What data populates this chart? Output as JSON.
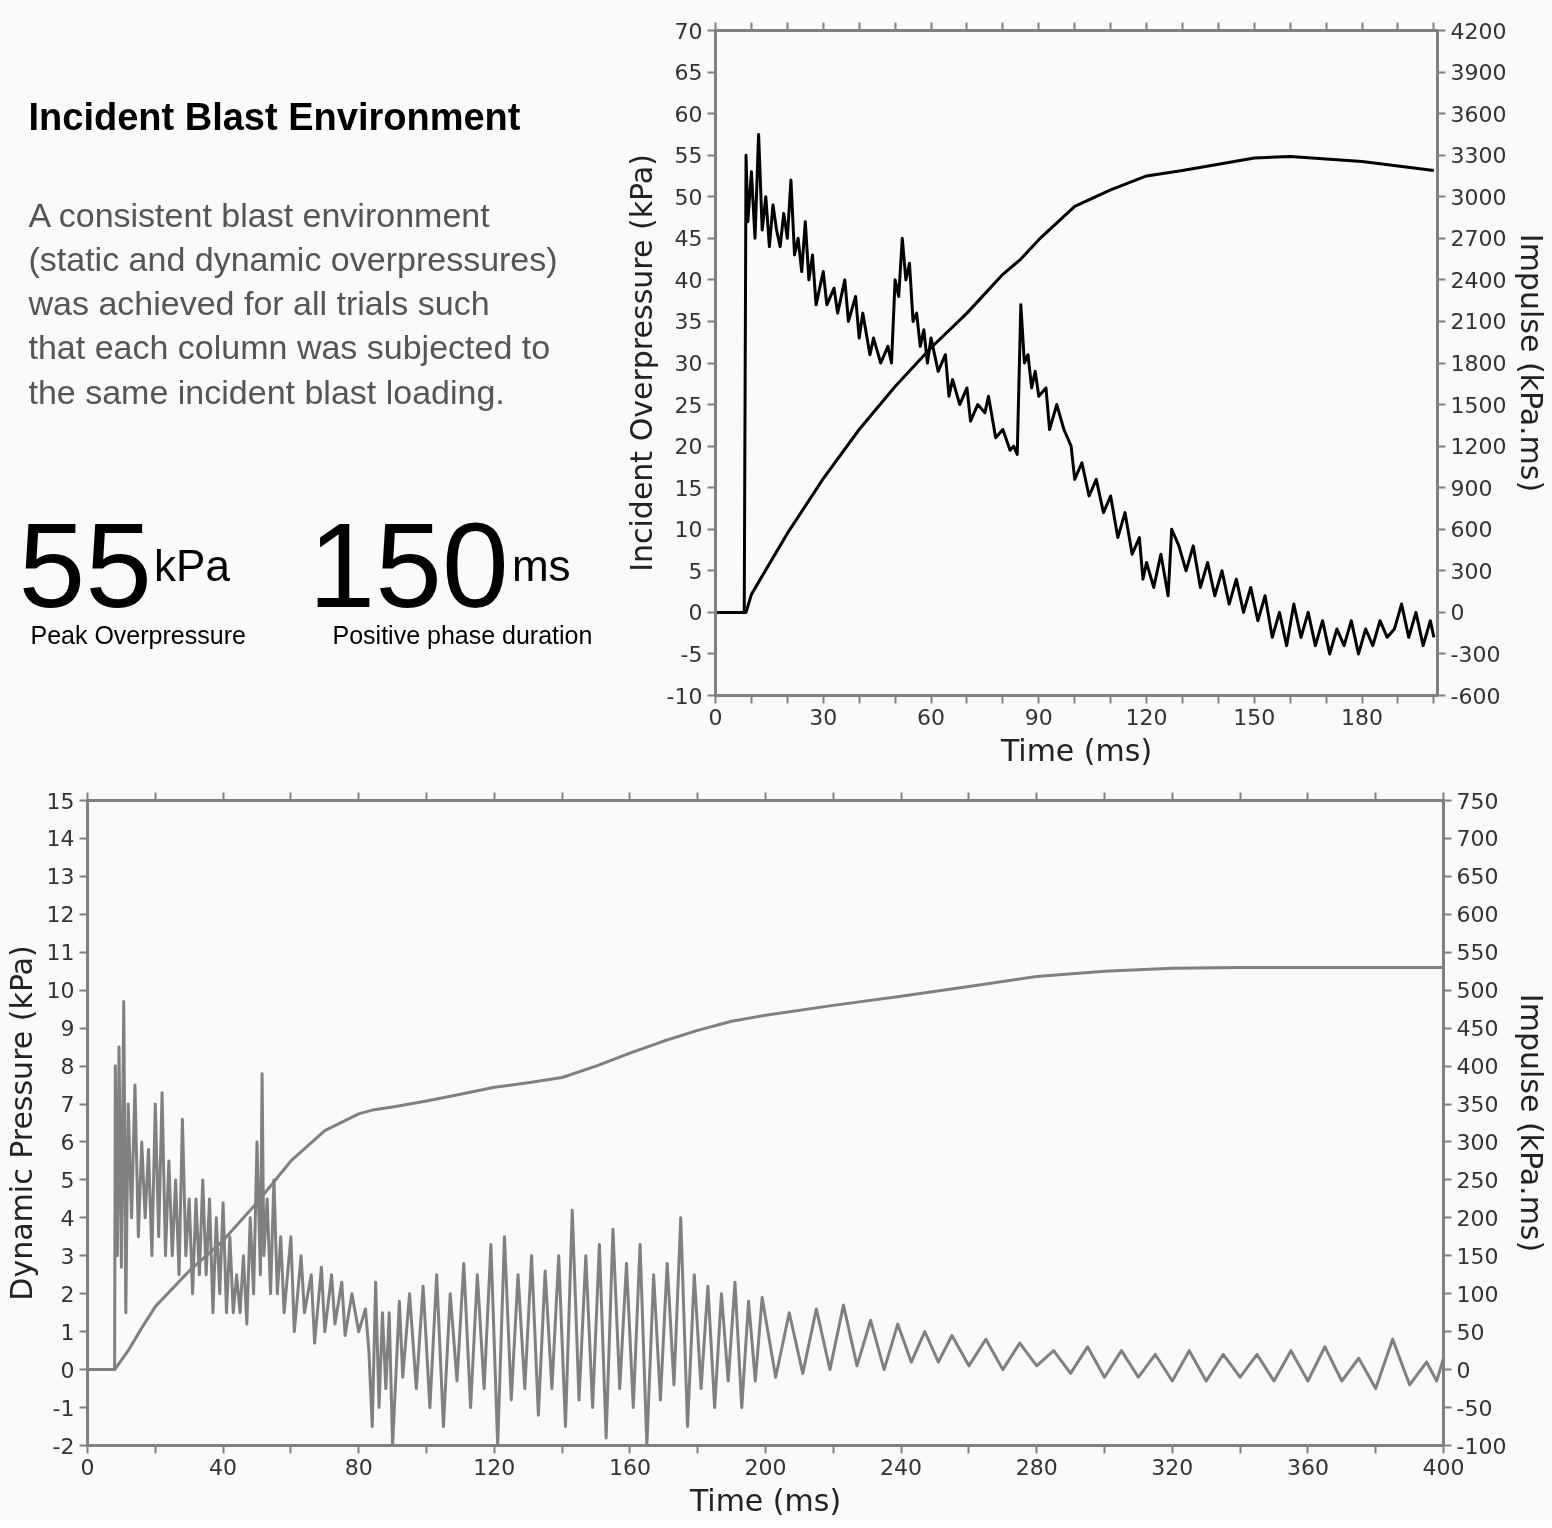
{
  "chart_data": [
    {
      "type": "other",
      "title": "Incident Blast Environment",
      "annotations": [
        "A consistent blast environment (static and dynamic overpressures) was achieved for all trials such that each column was subjected to the same incident blast loading.",
        "55",
        "kPa",
        "Peak Overpressure",
        "150",
        "ms",
        "Positive phase duration"
      ]
    },
    {
      "type": "line",
      "xlabel": "Time (ms)",
      "ylabel": "Incident Overpressure (kPa)",
      "y2label": "Impulse (kPa.ms)",
      "xlim": [
        0,
        201
      ],
      "ylim": [
        -10,
        70
      ],
      "y2lim": [
        -600,
        4200
      ],
      "xticks": [
        0,
        {
          "value": 10,
          "label": null
        },
        {
          "value": 20,
          "label": null
        },
        30,
        {
          "value": 40,
          "label": null
        },
        {
          "value": 50,
          "label": null
        },
        60,
        {
          "value": 70,
          "label": null
        },
        {
          "value": 80,
          "label": null
        },
        90,
        {
          "value": 100,
          "label": null
        },
        {
          "value": 110,
          "label": null
        },
        120,
        {
          "value": 130,
          "label": null
        },
        {
          "value": 140,
          "label": null
        },
        150,
        {
          "value": 160,
          "label": null
        },
        {
          "value": 170,
          "label": null
        },
        180,
        {
          "value": 190,
          "label": null
        },
        {
          "value": 200,
          "label": null
        }
      ],
      "yticks": [
        -10,
        -5,
        0,
        5,
        10,
        15,
        20,
        25,
        30,
        35,
        40,
        45,
        50,
        55,
        60,
        65,
        70
      ],
      "y2ticks": [
        -600,
        -300,
        0,
        300,
        600,
        900,
        1200,
        1500,
        1800,
        2100,
        2400,
        2700,
        3000,
        3300,
        3600,
        3900,
        4200
      ],
      "grid": false,
      "line_style": "solid",
      "marker": "none",
      "series": [
        {
          "color": "#000000",
          "x": [
            0,
            8,
            8.5,
            9,
            10,
            11,
            12,
            13,
            14,
            15,
            16,
            17,
            18,
            19,
            20,
            21,
            22,
            23,
            24,
            25,
            26,
            27,
            28,
            30,
            31,
            33,
            34,
            36,
            37,
            39,
            40,
            41,
            43,
            44,
            46,
            48,
            49,
            50,
            51,
            52,
            53,
            54,
            55,
            56,
            57,
            58,
            59,
            60,
            62,
            64,
            65,
            66,
            68,
            70,
            71,
            73,
            75,
            76,
            78,
            80,
            82,
            83,
            84,
            85,
            86,
            87,
            88,
            89,
            90,
            92,
            93,
            95,
            97,
            99,
            100,
            102,
            104,
            106,
            108,
            110,
            112,
            114,
            116,
            118,
            119,
            120,
            122,
            124,
            126,
            127,
            129,
            131,
            133,
            135,
            137,
            139,
            141,
            143,
            145,
            147,
            149,
            151,
            153,
            155,
            157,
            159,
            161,
            163,
            165,
            167,
            169,
            171,
            173,
            175,
            177,
            179,
            181,
            183,
            185,
            187,
            189,
            191,
            193,
            195,
            197,
            199,
            200
          ],
          "values": [
            0,
            0,
            55,
            47,
            53,
            45,
            57.5,
            46,
            50,
            44,
            49,
            46,
            44,
            48,
            45,
            52,
            43,
            45,
            41,
            47,
            40,
            43,
            37,
            41,
            37,
            39,
            36,
            40,
            35,
            38,
            33,
            36,
            31,
            33,
            30,
            32,
            30,
            40,
            38,
            45,
            40,
            42,
            35,
            36,
            32,
            34,
            30,
            33,
            29,
            31,
            26,
            28,
            25,
            27,
            23,
            25,
            24,
            26,
            21,
            22,
            19.5,
            20,
            19,
            37,
            30,
            31,
            27,
            29,
            26,
            27,
            22,
            25,
            22,
            20,
            16,
            18,
            14,
            16,
            12,
            14,
            9,
            12,
            7,
            9,
            4,
            6,
            3,
            7,
            2,
            10,
            8,
            5,
            8,
            3,
            6,
            2,
            5,
            1,
            4,
            0,
            3,
            -1,
            2,
            -3,
            0,
            -4,
            1,
            -3,
            0,
            -4,
            -1,
            -5,
            -2,
            -4,
            -1,
            -5,
            -2,
            -4,
            -1,
            -3,
            -2,
            1,
            -3,
            0,
            -4,
            -1,
            -3
          ],
          "axis": "y"
        },
        {
          "color": "#000000",
          "x": [
            0,
            8.5,
            10,
            15,
            20,
            30,
            40,
            50,
            60,
            70,
            80,
            85,
            90,
            100,
            110,
            120,
            130,
            150,
            160,
            180,
            200
          ],
          "values": [
            0,
            0,
            130,
            350,
            570,
            965,
            1320,
            1630,
            1910,
            2160,
            2440,
            2550,
            2690,
            2930,
            3050,
            3150,
            3190,
            3280,
            3290,
            3255,
            3190
          ],
          "axis": "y2"
        }
      ]
    },
    {
      "type": "line",
      "xlabel": "Time (ms)",
      "ylabel": "Dynamic Pressure (kPa)",
      "y2label": "Impulse (kPa.ms)",
      "xlim": [
        0,
        400
      ],
      "ylim": [
        -2,
        15
      ],
      "y2lim": [
        -100,
        750
      ],
      "xticks": [
        0,
        {
          "value": 20,
          "label": null
        },
        40,
        {
          "value": 60,
          "label": null
        },
        80,
        {
          "value": 100,
          "label": null
        },
        120,
        {
          "value": 140,
          "label": null
        },
        160,
        {
          "value": 180,
          "label": null
        },
        200,
        {
          "value": 220,
          "label": null
        },
        240,
        {
          "value": 260,
          "label": null
        },
        280,
        {
          "value": 300,
          "label": null
        },
        320,
        {
          "value": 340,
          "label": null
        },
        360,
        {
          "value": 380,
          "label": null
        },
        400
      ],
      "yticks": [
        -2,
        -1,
        0,
        1,
        2,
        3,
        4,
        5,
        6,
        7,
        8,
        9,
        10,
        11,
        12,
        13,
        14,
        15
      ],
      "y2ticks": [
        -100,
        -50,
        0,
        50,
        100,
        150,
        200,
        250,
        300,
        350,
        400,
        450,
        500,
        550,
        600,
        650,
        700,
        750
      ],
      "grid": false,
      "line_style": "solid",
      "marker": "none",
      "series": [
        {
          "color": "#808080",
          "x": [
            0,
            8,
            8.2,
            8.8,
            9.3,
            10,
            10.7,
            11.3,
            12,
            13,
            14,
            15,
            16,
            17,
            18,
            19,
            20,
            21,
            22,
            23,
            24,
            25,
            26,
            27,
            28,
            29,
            30,
            31,
            32,
            33,
            34,
            35,
            36,
            37,
            38,
            39,
            40,
            41,
            42,
            43,
            44,
            45,
            46,
            47,
            48,
            49,
            50,
            51,
            51.5,
            52,
            53,
            54,
            55,
            56,
            57,
            58,
            60,
            61,
            63,
            64,
            66,
            67,
            69,
            70,
            72,
            73,
            75,
            76,
            78,
            80,
            82,
            83,
            84,
            85,
            86,
            87,
            88,
            89,
            90,
            92,
            93,
            95,
            97,
            99,
            101,
            103,
            105,
            107,
            109,
            111,
            113,
            115,
            117,
            119,
            121,
            123,
            125,
            127,
            129,
            131,
            133,
            135,
            137,
            139,
            141,
            143,
            145,
            147,
            149,
            151,
            153,
            155,
            157,
            159,
            161,
            163,
            165,
            167,
            169,
            171,
            173,
            175,
            177,
            179,
            181,
            183,
            185,
            187,
            189,
            191,
            193,
            195,
            197,
            199,
            203,
            207,
            211,
            215,
            219,
            223,
            227,
            231,
            235,
            239,
            243,
            247,
            251,
            255,
            260,
            265,
            270,
            275,
            280,
            285,
            290,
            295,
            300,
            305,
            310,
            315,
            320,
            325,
            330,
            335,
            340,
            345,
            350,
            355,
            360,
            365,
            370,
            375,
            380,
            385,
            390,
            395,
            398,
            400
          ],
          "values": [
            0,
            0,
            8,
            3,
            8.5,
            2.7,
            9.7,
            1.5,
            7,
            4,
            7.5,
            3.5,
            6,
            4,
            5.8,
            3,
            7,
            3.5,
            7.3,
            3,
            5.5,
            3,
            5,
            2.5,
            6.6,
            3,
            4.5,
            2,
            4.5,
            2.5,
            5,
            2.5,
            4.5,
            1.5,
            4,
            2,
            4.4,
            1.5,
            3.5,
            1.5,
            2.5,
            1.5,
            3,
            1.2,
            4,
            2,
            6,
            2.5,
            7.8,
            3,
            4.5,
            2,
            5,
            2,
            3.5,
            1.5,
            3.5,
            1,
            3,
            1.5,
            2.5,
            0.7,
            2.7,
            1,
            2.5,
            1.2,
            2.3,
            0.9,
            2,
            1,
            1.6,
            0.5,
            -1.5,
            2.3,
            -1,
            1.5,
            -0.5,
            1.5,
            -2,
            1.8,
            -0.2,
            2,
            -0.5,
            2.2,
            -1,
            2.5,
            -1.5,
            2,
            -0.3,
            2.8,
            -1,
            2.5,
            -0.5,
            3.3,
            -2,
            3.5,
            -0.8,
            2.5,
            -0.5,
            3,
            -1.2,
            2.6,
            -0.5,
            3,
            -1.5,
            4.2,
            -0.8,
            3,
            -1,
            3.3,
            -1.8,
            3.7,
            -0.5,
            2.8,
            -1,
            3.3,
            -2,
            2.5,
            -0.8,
            2.8,
            -0.4,
            4,
            -1.5,
            2.5,
            -0.5,
            2.2,
            -1,
            2,
            -0.3,
            2.3,
            -1,
            1.8,
            -0.3,
            1.9,
            -0.2,
            1.5,
            -0.1,
            1.6,
            0,
            1.7,
            0.1,
            1.3,
            0,
            1.2,
            0.2,
            1,
            0.2,
            0.9,
            0.1,
            0.8,
            0,
            0.7,
            0.1,
            0.5,
            -0.1,
            0.6,
            -0.2,
            0.5,
            -0.2,
            0.4,
            -0.3,
            0.5,
            -0.3,
            0.4,
            -0.2,
            0.4,
            -0.3,
            0.5,
            -0.3,
            0.6,
            -0.3,
            0.3,
            -0.5,
            0.8,
            -0.4,
            0.2,
            -0.3,
            0.3
          ],
          "axis": "y"
        },
        {
          "color": "#808080",
          "x": [
            0,
            8,
            12,
            16,
            20,
            30,
            40,
            50,
            60,
            70,
            80,
            84,
            90,
            100,
            110,
            120,
            130,
            140,
            150,
            160,
            170,
            180,
            190,
            200,
            220,
            240,
            260,
            280,
            300,
            320,
            340,
            360,
            400
          ],
          "values": [
            0,
            0,
            25,
            55,
            83,
            130,
            170,
            220,
            275,
            315,
            337,
            342,
            346,
            354,
            363,
            372,
            378,
            385,
            400,
            417,
            433,
            447,
            459,
            467,
            480,
            492,
            505,
            518,
            525,
            529,
            530,
            530,
            530
          ],
          "axis": "y2"
        }
      ]
    }
  ]
}
